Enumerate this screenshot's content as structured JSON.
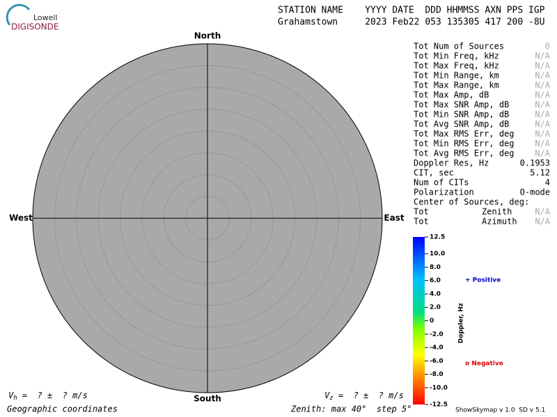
{
  "logo": {
    "line1": "Lowell",
    "line2": "DIGISONDE"
  },
  "header": {
    "labels": "STATION NAME    YYYY DATE  DDD HHMMSS AXN PPS IGP",
    "values": "Grahamstown     2023 Feb22 053 135305 417 200 -8U"
  },
  "skymap": {
    "north": "North",
    "south": "South",
    "east": "East",
    "west": "West"
  },
  "stats": [
    {
      "label": "Tot Num of Sources",
      "value": "0",
      "color": "#aaaaaa"
    },
    {
      "label": "Tot Min Freq, kHz",
      "value": "N/A",
      "color": "#aaaaaa"
    },
    {
      "label": "Tot Max Freq, kHz",
      "value": "N/A",
      "color": "#aaaaaa"
    },
    {
      "label": "Tot Min Range, km",
      "value": "N/A",
      "color": "#aaaaaa"
    },
    {
      "label": "Tot Max Range, km",
      "value": "N/A",
      "color": "#aaaaaa"
    },
    {
      "label": "Tot Max Amp, dB",
      "value": "N/A",
      "color": "#aaaaaa"
    },
    {
      "label": "Tot Max SNR Amp, dB",
      "value": "N/A",
      "color": "#aaaaaa"
    },
    {
      "label": "Tot Min SNR Amp, dB",
      "value": "N/A",
      "color": "#aaaaaa"
    },
    {
      "label": "Tot Avg SNR Amp, dB",
      "value": "N/A",
      "color": "#aaaaaa"
    },
    {
      "label": "Tot Max RMS Err, deg",
      "value": "N/A",
      "color": "#aaaaaa"
    },
    {
      "label": "Tot Min RMS Err, deg",
      "value": "N/A",
      "color": "#aaaaaa"
    },
    {
      "label": "Tot Avg RMS Err, deg",
      "value": "N/A",
      "color": "#aaaaaa"
    },
    {
      "label": "Doppler Res, Hz",
      "value": "0.1953",
      "color": "#000000"
    },
    {
      "label": "CIT, sec",
      "value": "5.12",
      "color": "#000000"
    },
    {
      "label": "Num of CITs",
      "value": "4",
      "color": "#000000"
    },
    {
      "label": "Polarization",
      "value": "O-mode",
      "color": "#000000"
    },
    {
      "label": "Center of Sources, deg:"
    },
    {
      "label": "Tot",
      "sublabel": "Zenith",
      "value": "N/A",
      "color": "#aaaaaa"
    },
    {
      "label": "Tot",
      "sublabel": "Azimuth",
      "value": "N/A",
      "color": "#aaaaaa"
    }
  ],
  "colorbar": {
    "label": "Doppler, Hz",
    "lim": [
      -12.5,
      12.5
    ],
    "ticks": [
      {
        "value": 12.5,
        "label": "12.5"
      },
      {
        "value": 10,
        "label": "10.0"
      },
      {
        "value": 8,
        "label": "8.0"
      },
      {
        "value": 6,
        "label": "6.0"
      },
      {
        "value": 4,
        "label": "4.0"
      },
      {
        "value": 2,
        "label": "2.0"
      },
      0,
      {
        "value": -2,
        "label": "-2.0"
      },
      {
        "value": -4,
        "label": "-4.0"
      },
      {
        "value": -6,
        "label": "-6.0"
      },
      {
        "value": -8,
        "label": "-8.0"
      },
      {
        "value": -10,
        "label": "-10.0"
      },
      {
        "value": -12.5,
        "label": "-12.5"
      }
    ]
  },
  "legend": {
    "positive": "+ Positive",
    "positive_color": "#0000cc",
    "negative": "o Negative",
    "negative_color": "#dd0000"
  },
  "footer": {
    "vh_symbol": "V",
    "vh_sub": "h",
    "vh_text": " =  ? ±  ? m/s",
    "vz_symbol": "V",
    "vz_sub": "z",
    "vz_text": " =  ? ±  ? m/s",
    "coords": "Geographic coordinates",
    "zenith": "Zenith: max 40°  step 5°",
    "version": "ShowSkymap v 1.0  SD v 5.1"
  }
}
